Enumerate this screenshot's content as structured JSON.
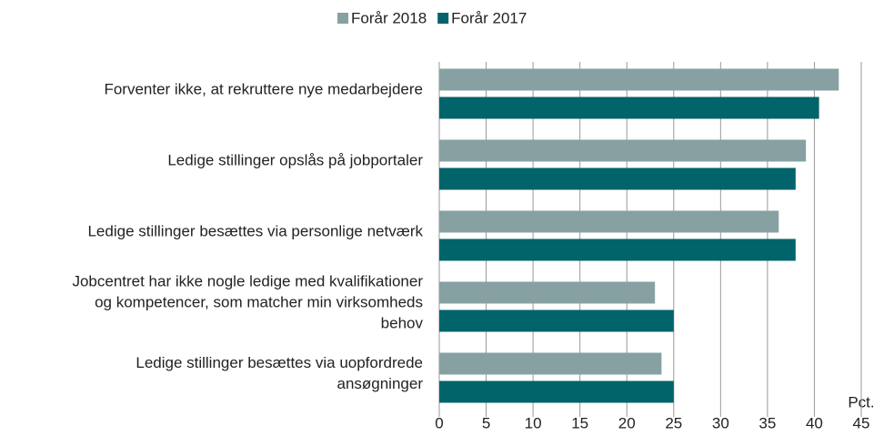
{
  "chart_data": {
    "type": "barh",
    "categories": [
      [
        "Forventer ikke, at rekruttere nye medarbejdere"
      ],
      [
        "Ledige stillinger opslås på jobportaler"
      ],
      [
        "Ledige stillinger besættes via personlige netværk"
      ],
      [
        "Jobcentret har ikke nogle ledige med kvalifikationer",
        "og kompetencer, som matcher min virksomheds",
        "behov"
      ],
      [
        "Ledige stillinger besættes via uopfordrede",
        "ansøgninger"
      ]
    ],
    "series": [
      {
        "name": "Forår 2018",
        "color": "#87a1a3",
        "values": [
          42.6,
          39.1,
          36.2,
          23.0,
          23.7
        ]
      },
      {
        "name": "Forår 2017",
        "color": "#00646a",
        "values": [
          40.5,
          38.0,
          38.0,
          25.0,
          25.0
        ]
      }
    ],
    "xlabel": "Pct.",
    "xlim": [
      0,
      45
    ],
    "xticks": [
      0,
      5,
      10,
      15,
      20,
      25,
      30,
      35,
      40,
      45
    ],
    "grid": true,
    "legend": "top"
  }
}
